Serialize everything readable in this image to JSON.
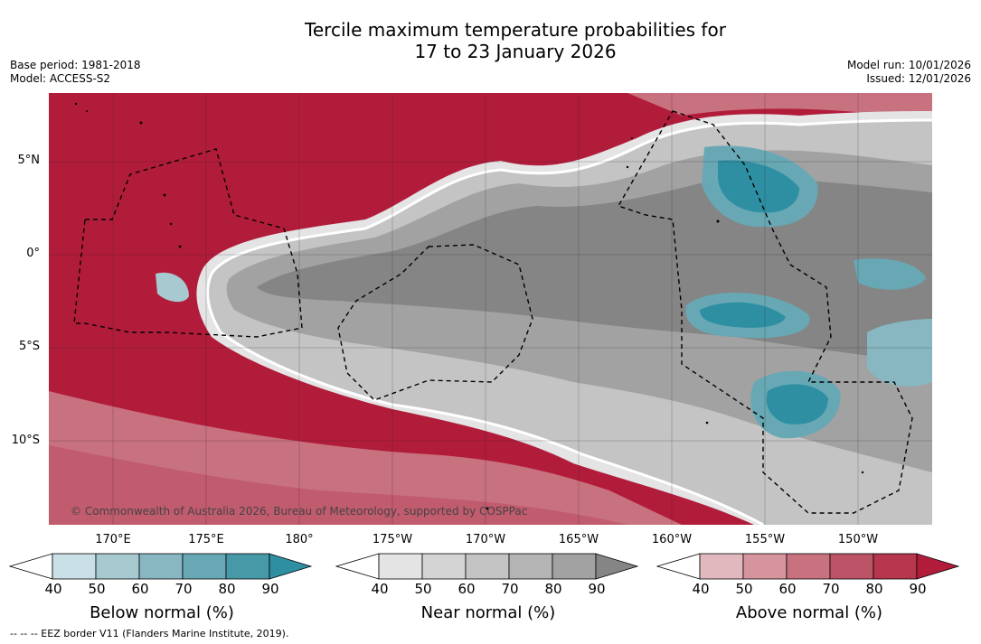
{
  "title": {
    "line1": "Tercile maximum temperature probabilities for",
    "line2": "17 to 23 January 2026"
  },
  "meta": {
    "base_period": "Base period: 1981-2018",
    "model": "Model: ACCESS-S2",
    "model_run": "Model run: 10/01/2026",
    "issued": "Issued: 12/01/2026"
  },
  "axes": {
    "latitudes": [
      "5°N",
      "0°",
      "5°S",
      "10°S"
    ],
    "longitudes": [
      "170°E",
      "175°E",
      "180°",
      "175°W",
      "170°W",
      "165°W",
      "160°W",
      "155°W",
      "150°W"
    ]
  },
  "credit": "© Commonwealth of Australia 2026, Bureau of Meteorology, supported by COSPPac",
  "colorbars": [
    {
      "label": "Below normal (%)",
      "ticks": [
        "40",
        "50",
        "60",
        "70",
        "80",
        "90"
      ],
      "colors": [
        "#ffffff",
        "#c8e0e6",
        "#a7c9d0",
        "#88b6c1",
        "#68a8b5",
        "#4799a8",
        "#2e8fa2"
      ]
    },
    {
      "label": "Near normal (%)",
      "ticks": [
        "40",
        "50",
        "60",
        "70",
        "80",
        "90"
      ],
      "colors": [
        "#ffffff",
        "#e4e4e4",
        "#d4d4d4",
        "#c4c4c4",
        "#b4b4b4",
        "#a2a2a2",
        "#858585"
      ]
    },
    {
      "label": "Above normal (%)",
      "ticks": [
        "40",
        "50",
        "60",
        "70",
        "80",
        "90"
      ],
      "colors": [
        "#ffffff",
        "#e2b8bf",
        "#d5949e",
        "#c8717f",
        "#bd5366",
        "#b5364d",
        "#b21c3b"
      ]
    }
  ],
  "footnote": "--  --  -- EEZ border V11 (Flanders Marine Institute, 2019)."
}
